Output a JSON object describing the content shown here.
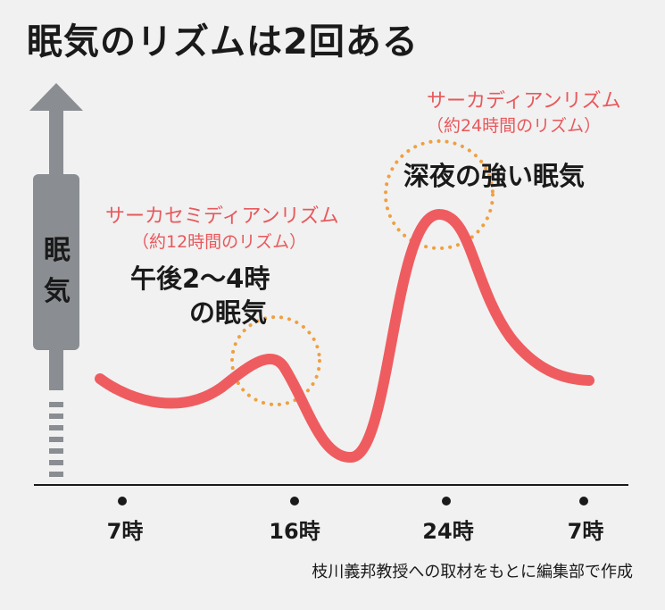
{
  "title": "眠気のリズムは2回ある",
  "y_axis_label": [
    "眠",
    "気"
  ],
  "semidian": {
    "name": "サーカセミディアンリズム",
    "note": "（約12時間のリズム）",
    "callout_lines": [
      "午後2〜4時",
      "の眠気"
    ]
  },
  "circadian": {
    "name": "サーカディアンリズム",
    "note": "（約24時間のリズム）",
    "callout": "深夜の強い眠気"
  },
  "time_ticks": [
    "7時",
    "16時",
    "24時",
    "7時"
  ],
  "source": "枝川義邦教授への取材をもとに編集部で作成",
  "colors": {
    "background": "#f1f1f1",
    "curve": "#ef5c60",
    "highlight_ring": "#f0a040",
    "arrow": "#8a8e92",
    "text": "#1a1a1a",
    "accent_text": "#e8585c"
  }
}
